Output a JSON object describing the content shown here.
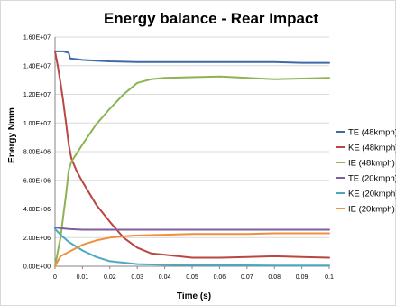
{
  "chart_data": {
    "type": "line",
    "title": "Energy balance - Rear Impact",
    "xlabel": "Time (s)",
    "ylabel": "Energy Nmm",
    "xlim": [
      0,
      0.1
    ],
    "ylim": [
      0,
      16000000
    ],
    "x_ticks": [
      "0",
      "0.01",
      "0.02",
      "0.03",
      "0.04",
      "0.05",
      "0.06",
      "0.07",
      "0.08",
      "0.09",
      "0.1"
    ],
    "y_ticks": [
      "0.00E+00",
      "2.00E+06",
      "4.00E+06",
      "6.00E+06",
      "8.00E+06",
      "1.00E+07",
      "1.20E+07",
      "1.40E+07",
      "1.60E+07"
    ],
    "grid": "horizontal",
    "legend_position": "right",
    "series": [
      {
        "name": "TE (48kmph)",
        "color": "#3e6ba8",
        "x": [
          0,
          0.001,
          0.003,
          0.005,
          0.0055,
          0.008,
          0.01,
          0.015,
          0.02,
          0.03,
          0.04,
          0.05,
          0.06,
          0.07,
          0.08,
          0.09,
          0.1
        ],
        "y": [
          15000000,
          15000000,
          15000000,
          14900000,
          14500000,
          14450000,
          14400000,
          14350000,
          14300000,
          14250000,
          14250000,
          14250000,
          14250000,
          14250000,
          14250000,
          14200000,
          14200000
        ]
      },
      {
        "name": "KE (48kmph)",
        "color": "#b94743",
        "x": [
          0,
          0.001,
          0.002,
          0.003,
          0.004,
          0.005,
          0.006,
          0.008,
          0.01,
          0.015,
          0.02,
          0.025,
          0.03,
          0.035,
          0.04,
          0.05,
          0.06,
          0.07,
          0.08,
          0.09,
          0.1
        ],
        "y": [
          15000000,
          14000000,
          12800000,
          11500000,
          10000000,
          8500000,
          7500000,
          6600000,
          5900000,
          4300000,
          3100000,
          2000000,
          1300000,
          900000,
          800000,
          600000,
          600000,
          650000,
          700000,
          650000,
          600000
        ]
      },
      {
        "name": "IE (48kmph)",
        "color": "#8db352",
        "x": [
          0,
          0.001,
          0.002,
          0.003,
          0.004,
          0.005,
          0.006,
          0.008,
          0.01,
          0.015,
          0.02,
          0.025,
          0.03,
          0.035,
          0.04,
          0.05,
          0.06,
          0.07,
          0.08,
          0.09,
          0.1
        ],
        "y": [
          0,
          1000000,
          2000000,
          3500000,
          5000000,
          6700000,
          7300000,
          7900000,
          8500000,
          9900000,
          11000000,
          12000000,
          12800000,
          13050000,
          13150000,
          13200000,
          13250000,
          13150000,
          13050000,
          13100000,
          13150000
        ]
      },
      {
        "name": "TE (20kmph)",
        "color": "#7d5fa0",
        "x": [
          0,
          0.005,
          0.01,
          0.02,
          0.03,
          0.04,
          0.05,
          0.06,
          0.07,
          0.08,
          0.09,
          0.1
        ],
        "y": [
          2700000,
          2600000,
          2550000,
          2550000,
          2550000,
          2550000,
          2550000,
          2550000,
          2550000,
          2550000,
          2550000,
          2550000
        ]
      },
      {
        "name": "KE (20kmph)",
        "color": "#4aa8c1",
        "x": [
          0,
          0.002,
          0.005,
          0.01,
          0.015,
          0.02,
          0.025,
          0.03,
          0.04,
          0.05,
          0.06,
          0.07,
          0.08,
          0.09,
          0.1
        ],
        "y": [
          2600000,
          2200000,
          1700000,
          1100000,
          650000,
          350000,
          250000,
          150000,
          100000,
          80000,
          70000,
          60000,
          50000,
          50000,
          50000
        ]
      },
      {
        "name": "IE (20kmph)",
        "color": "#f0903a",
        "x": [
          0,
          0.002,
          0.005,
          0.008,
          0.01,
          0.015,
          0.02,
          0.025,
          0.03,
          0.04,
          0.05,
          0.06,
          0.07,
          0.08,
          0.09,
          0.1
        ],
        "y": [
          0,
          700000,
          1000000,
          1300000,
          1500000,
          1800000,
          2000000,
          2100000,
          2150000,
          2200000,
          2250000,
          2250000,
          2250000,
          2300000,
          2300000,
          2300000
        ]
      }
    ]
  }
}
